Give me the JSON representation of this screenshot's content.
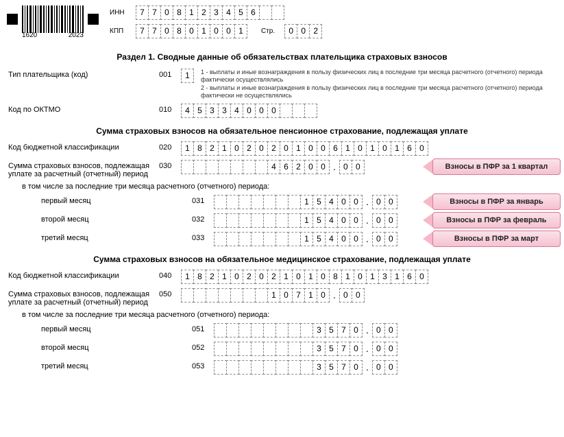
{
  "barcode": {
    "num_left": "1620",
    "num_right": "2023"
  },
  "header": {
    "inn_label": "ИНН",
    "inn": "7708123456",
    "inn_len": 12,
    "kpp_label": "КПП",
    "kpp": "770801001",
    "kpp_len": 9,
    "page_label": "Стр.",
    "page": "002",
    "page_len": 3
  },
  "section1_title": "Раздел 1. Сводные данные об обязательствах плательщика страховых взносов",
  "payer_type": {
    "label": "Тип плательщика (код)",
    "num": "001",
    "value": "1",
    "len": 1,
    "hint1": "1 - выплаты и иные вознаграждения в пользу физических лиц в последние три месяца расчетного (отчетного) периода фактически осуществлялись",
    "hint2": "2 - выплаты и иные вознаграждения в пользу физических лиц в последние три месяца расчетного (отчетного) периода фактически не осуществлялись"
  },
  "oktmo": {
    "label": "Код по ОКТМО",
    "num": "010",
    "value": "45334000",
    "len": 11
  },
  "pension_title": "Сумма страховых взносов на обязательное пенсионное страхование, подлежащая уплате",
  "kbk_pension": {
    "label": "Код бюджетной классификации",
    "num": "020",
    "value": "18210202010061010160",
    "len": 20
  },
  "sum_pension": {
    "label": "Сумма страховых взносов, подлежащая уплате за расчетный (отчетный) период",
    "num": "030",
    "int": "46200",
    "int_len": 12,
    "dec": "00",
    "dec_len": 2,
    "callout": "Взносы в ПФР за 1 квартал"
  },
  "last3_label": "в том числе за последние три месяца расчетного (отчетного) периода:",
  "months_pension": [
    {
      "label": "первый месяц",
      "num": "031",
      "int": "15400",
      "dec": "00",
      "callout": "Взносы в ПФР за январь"
    },
    {
      "label": "второй месяц",
      "num": "032",
      "int": "15400",
      "dec": "00",
      "callout": "Взносы в ПФР за февраль"
    },
    {
      "label": "третий месяц",
      "num": "033",
      "int": "15400",
      "dec": "00",
      "callout": "Взносы в ПФР за март"
    }
  ],
  "med_title": "Сумма страховых взносов на обязательное медицинское страхование, подлежащая уплате",
  "kbk_med": {
    "label": "Код бюджетной классификации",
    "num": "040",
    "value": "18210202101081013160",
    "len": 20
  },
  "sum_med": {
    "label": "Сумма страховых взносов, подлежащая уплате за расчетный (отчетный) период",
    "num": "050",
    "int": "10710",
    "int_len": 12,
    "dec": "00",
    "dec_len": 2
  },
  "months_med": [
    {
      "label": "первый месяц",
      "num": "051",
      "int": "3570",
      "dec": "00"
    },
    {
      "label": "второй месяц",
      "num": "052",
      "int": "3570",
      "dec": "00"
    },
    {
      "label": "третий месяц",
      "num": "053",
      "int": "3570",
      "dec": "00"
    }
  ],
  "month_int_len": 12,
  "month_dec_len": 2,
  "colors": {
    "cell_border": "#888888",
    "callout_bg_top": "#fbe2ea",
    "callout_bg_bot": "#f5c2d1",
    "callout_border": "#d87a98",
    "text": "#000000",
    "background": "#ffffff"
  }
}
